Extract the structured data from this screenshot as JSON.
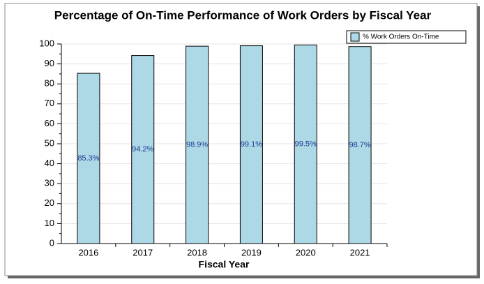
{
  "chart_data": {
    "type": "bar",
    "title": "Percentage of On-Time Performance of Work Orders by Fiscal Year",
    "x_label": "Fiscal Year",
    "categories": [
      "2016",
      "2017",
      "2018",
      "2019",
      "2020",
      "2021"
    ],
    "series": [
      {
        "name": "% Work Orders On-Time",
        "color": "#add8e6",
        "values": [
          85.3,
          94.2,
          98.9,
          99.1,
          99.5,
          98.7
        ],
        "value_labels": [
          "85.3%",
          "94.2%",
          "98.9%",
          "99.1%",
          "99.5%",
          "98.7%"
        ]
      }
    ],
    "ylim": [
      0,
      100
    ],
    "yticks": [
      0,
      10,
      20,
      30,
      40,
      50,
      60,
      70,
      80,
      90,
      100
    ],
    "grid": true,
    "legend": "top-right"
  }
}
